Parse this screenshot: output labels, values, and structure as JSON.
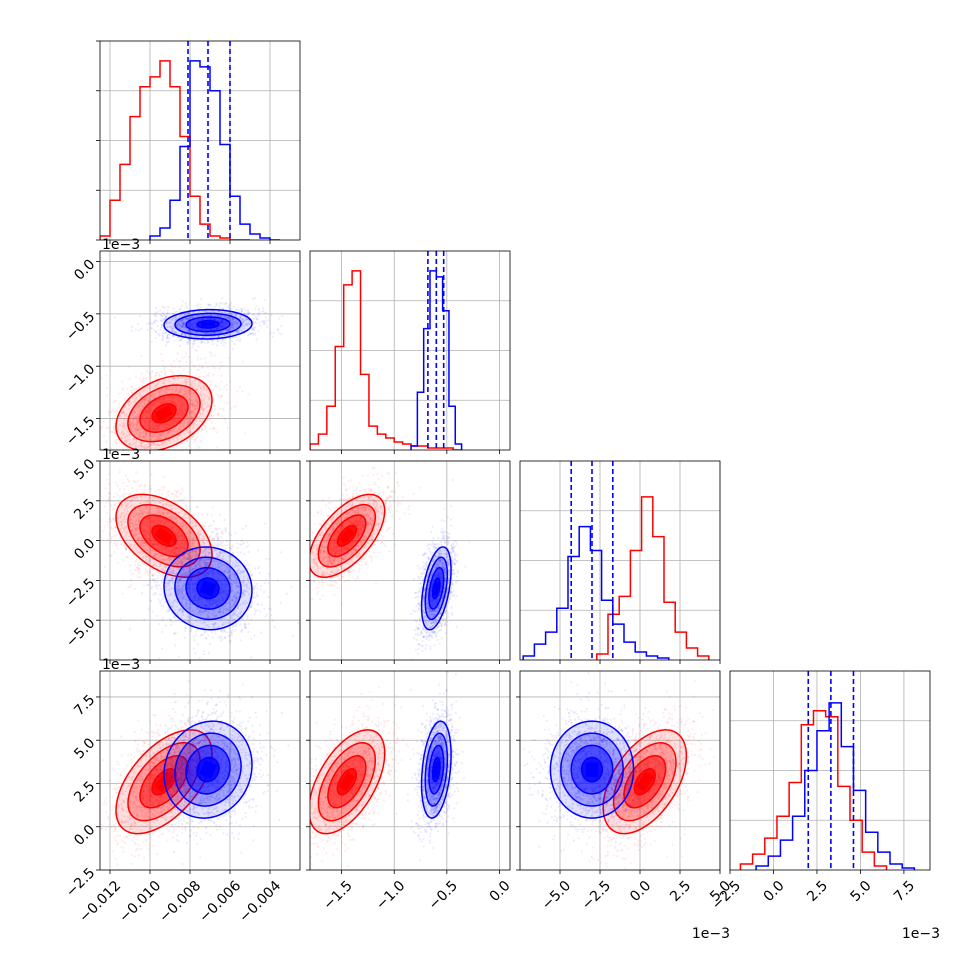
{
  "chart_data": {
    "type": "corner",
    "title": "",
    "colors": {
      "red_series": "#ff0000",
      "blue_series": "#0000ff"
    },
    "parameters": [
      {
        "range": [
          -0.0125,
          -0.0025
        ],
        "tick_values": [
          -0.012,
          -0.01,
          -0.008,
          -0.006,
          -0.004
        ],
        "tick_labels": [
          "−0.012",
          "−0.010",
          "−0.008",
          "−0.006",
          "−0.004"
        ],
        "offset_text": ""
      },
      {
        "range": [
          -1.8,
          0.1
        ],
        "tick_values": [
          -1.5,
          -1.0,
          -0.5,
          0.0
        ],
        "tick_labels": [
          "−1.5",
          "−1.0",
          "−0.5",
          "0.0"
        ],
        "offset_text": "1e−3"
      },
      {
        "range": [
          -7.5,
          5.0
        ],
        "tick_values": [
          -5.0,
          -2.5,
          0.0,
          2.5,
          5.0
        ],
        "tick_labels": [
          "−5.0",
          "−2.5",
          "0.0",
          "2.5",
          "5.0"
        ],
        "offset_text": "1e−3"
      },
      {
        "range": [
          -2.5,
          9.0
        ],
        "tick_values": [
          -2.5,
          0.0,
          2.5,
          5.0,
          7.5
        ],
        "tick_labels": [
          "−2.5",
          "0.0",
          "2.5",
          "5.0",
          "7.5"
        ],
        "offset_text": "1e−3"
      }
    ],
    "series": [
      {
        "color": "#ff0000",
        "means": [
          -0.0093,
          -1.45,
          0.3,
          2.6
        ],
        "stds": [
          0.0012,
          0.18,
          1.3,
          1.5
        ],
        "correlations": {
          "0-1": 0.35,
          "0-2": -0.45,
          "0-3": 0.55,
          "1-2": 0.6,
          "1-3": 0.55,
          "2-3": 0.5
        },
        "histograms": [
          {
            "edges": [
              -0.0125,
              -0.012,
              -0.0115,
              -0.011,
              -0.0105,
              -0.01,
              -0.0095,
              -0.009,
              -0.0085,
              -0.008,
              -0.0075,
              -0.007,
              -0.0065,
              -0.006,
              -0.0055,
              -0.005
            ],
            "counts": [
              0.02,
              0.2,
              0.38,
              0.62,
              0.77,
              0.82,
              0.9,
              0.77,
              0.52,
              0.22,
              0.08,
              0.02,
              0.01,
              0.0,
              0.0
            ]
          },
          {
            "edges": [
              -1.8,
              -1.72,
              -1.64,
              -1.56,
              -1.48,
              -1.4,
              -1.32,
              -1.24,
              -1.16,
              -1.08,
              -1.0,
              -0.92,
              -0.84,
              -0.76,
              -0.68,
              -0.6,
              -0.52,
              -0.44,
              -0.36
            ],
            "counts": [
              0.03,
              0.08,
              0.22,
              0.52,
              0.83,
              0.9,
              0.38,
              0.12,
              0.08,
              0.06,
              0.04,
              0.03,
              0.02,
              0.02,
              0.01,
              0.01,
              0.01,
              0.0
            ]
          },
          {
            "edges": [
              -2.7,
              -2.0,
              -1.3,
              -0.6,
              0.1,
              0.8,
              1.5,
              2.2,
              2.9,
              3.6,
              4.3
            ],
            "counts": [
              0.03,
              0.23,
              0.32,
              0.55,
              0.82,
              0.62,
              0.29,
              0.14,
              0.06,
              0.02
            ]
          },
          {
            "edges": [
              -1.9,
              -1.2,
              -0.5,
              0.2,
              0.9,
              1.6,
              2.3,
              3.0,
              3.7,
              4.4,
              5.1,
              5.8,
              6.5
            ],
            "counts": [
              0.03,
              0.08,
              0.16,
              0.27,
              0.44,
              0.73,
              0.8,
              0.77,
              0.42,
              0.25,
              0.09,
              0.02
            ]
          }
        ]
      },
      {
        "color": "#0000ff",
        "means": [
          -0.0071,
          -0.6,
          -3.0,
          3.3
        ],
        "stds": [
          0.0011,
          0.07,
          1.3,
          1.4
        ],
        "correlations": {
          "0-1": 0.05,
          "0-2": -0.05,
          "0-3": 0.1,
          "1-2": 0.45,
          "1-3": 0.3,
          "2-3": 0.0
        },
        "histograms": [
          {
            "edges": [
              -0.01,
              -0.0095,
              -0.009,
              -0.0085,
              -0.008,
              -0.0075,
              -0.007,
              -0.0065,
              -0.006,
              -0.0055,
              -0.005,
              -0.0045,
              -0.004,
              -0.0035
            ],
            "counts": [
              0.02,
              0.06,
              0.2,
              0.47,
              0.9,
              0.87,
              0.75,
              0.48,
              0.22,
              0.08,
              0.03,
              0.01,
              0.0
            ]
          },
          {
            "edges": [
              -0.84,
              -0.78,
              -0.72,
              -0.66,
              -0.6,
              -0.54,
              -0.48,
              -0.42,
              -0.36
            ],
            "counts": [
              0.02,
              0.29,
              0.61,
              0.9,
              0.87,
              0.7,
              0.22,
              0.03
            ]
          },
          {
            "edges": [
              -7.3,
              -6.6,
              -5.9,
              -5.2,
              -4.5,
              -3.8,
              -3.1,
              -2.4,
              -1.7,
              -1.0,
              -0.3,
              0.4,
              1.1,
              1.8
            ],
            "counts": [
              0.02,
              0.08,
              0.14,
              0.26,
              0.52,
              0.67,
              0.55,
              0.3,
              0.18,
              0.09,
              0.04,
              0.02,
              0.01
            ]
          },
          {
            "edges": [
              -1.0,
              -0.3,
              0.4,
              1.1,
              1.8,
              2.5,
              3.2,
              3.9,
              4.6,
              5.3,
              6.0,
              6.7,
              7.4,
              8.1
            ],
            "counts": [
              0.02,
              0.07,
              0.15,
              0.27,
              0.5,
              0.7,
              0.84,
              0.62,
              0.4,
              0.19,
              0.09,
              0.03,
              0.01
            ]
          }
        ],
        "quantile_lines": [
          [
            -0.0081,
            -0.0071,
            -0.006
          ],
          [
            -0.68,
            -0.6,
            -0.53
          ],
          [
            -4.3,
            -3.0,
            -1.7
          ],
          [
            2.0,
            3.3,
            4.6
          ]
        ]
      }
    ],
    "grid": true,
    "legend": "none"
  }
}
